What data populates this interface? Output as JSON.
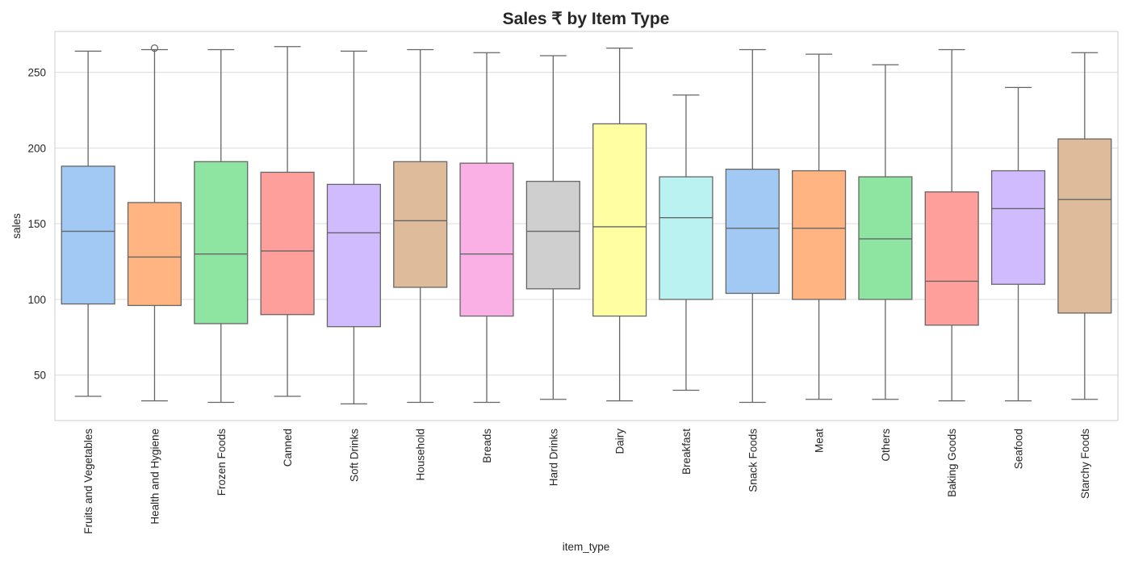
{
  "chart_data": {
    "type": "box",
    "title": "Sales ₹ by Item Type",
    "xlabel": "item_type",
    "ylabel": "sales",
    "ylim": [
      20,
      277
    ],
    "yticks": [
      50,
      100,
      150,
      200,
      250
    ],
    "grid": true,
    "categories": [
      "Fruits and Vegetables",
      "Health and Hygiene",
      "Frozen Foods",
      "Canned",
      "Soft Drinks",
      "Household",
      "Breads",
      "Hard Drinks",
      "Dairy",
      "Breakfast",
      "Snack Foods",
      "Meat",
      "Others",
      "Baking Goods",
      "Seafood",
      "Starchy Foods"
    ],
    "boxes": [
      {
        "category": "Fruits and Vegetables",
        "min": 36,
        "q1": 97,
        "median": 145,
        "q3": 188,
        "max": 264,
        "outliers": [],
        "color": "#a1c9f4"
      },
      {
        "category": "Health and Hygiene",
        "min": 33,
        "q1": 96,
        "median": 128,
        "q3": 164,
        "max": 265,
        "outliers": [
          266
        ],
        "color": "#ffb482"
      },
      {
        "category": "Frozen Foods",
        "min": 32,
        "q1": 84,
        "median": 130,
        "q3": 191,
        "max": 265,
        "outliers": [],
        "color": "#8de5a1"
      },
      {
        "category": "Canned",
        "min": 36,
        "q1": 90,
        "median": 132,
        "q3": 184,
        "max": 267,
        "outliers": [],
        "color": "#ff9f9b"
      },
      {
        "category": "Soft Drinks",
        "min": 31,
        "q1": 82,
        "median": 144,
        "q3": 176,
        "max": 264,
        "outliers": [],
        "color": "#d0bbff"
      },
      {
        "category": "Household",
        "min": 32,
        "q1": 108,
        "median": 152,
        "q3": 191,
        "max": 265,
        "outliers": [],
        "color": "#debb9b"
      },
      {
        "category": "Breads",
        "min": 32,
        "q1": 89,
        "median": 130,
        "q3": 190,
        "max": 263,
        "outliers": [],
        "color": "#fab0e4"
      },
      {
        "category": "Hard Drinks",
        "min": 34,
        "q1": 107,
        "median": 145,
        "q3": 178,
        "max": 261,
        "outliers": [],
        "color": "#cfcfcf"
      },
      {
        "category": "Dairy",
        "min": 33,
        "q1": 89,
        "median": 148,
        "q3": 216,
        "max": 266,
        "outliers": [],
        "color": "#fffea3"
      },
      {
        "category": "Breakfast",
        "min": 40,
        "q1": 100,
        "median": 154,
        "q3": 181,
        "max": 235,
        "outliers": [],
        "color": "#b9f2f0"
      },
      {
        "category": "Snack Foods",
        "min": 32,
        "q1": 104,
        "median": 147,
        "q3": 186,
        "max": 265,
        "outliers": [],
        "color": "#a1c9f4"
      },
      {
        "category": "Meat",
        "min": 34,
        "q1": 100,
        "median": 147,
        "q3": 185,
        "max": 262,
        "outliers": [],
        "color": "#ffb482"
      },
      {
        "category": "Others",
        "min": 34,
        "q1": 100,
        "median": 140,
        "q3": 181,
        "max": 255,
        "outliers": [],
        "color": "#8de5a1"
      },
      {
        "category": "Baking Goods",
        "min": 33,
        "q1": 83,
        "median": 112,
        "q3": 171,
        "max": 265,
        "outliers": [],
        "color": "#ff9f9b"
      },
      {
        "category": "Seafood",
        "min": 33,
        "q1": 110,
        "median": 160,
        "q3": 185,
        "max": 240,
        "outliers": [],
        "color": "#d0bbff"
      },
      {
        "category": "Starchy Foods",
        "min": 34,
        "q1": 91,
        "median": 166,
        "q3": 206,
        "max": 263,
        "outliers": [],
        "color": "#debb9b"
      }
    ]
  }
}
